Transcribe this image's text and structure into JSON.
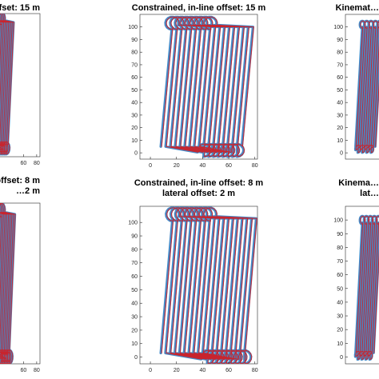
{
  "figure": {
    "colors": {
      "blue_series": "#3b84c4",
      "red_series": "#c8242d",
      "axes": "#262626",
      "background": "#ffffff"
    }
  },
  "chart_data": [
    {
      "type": "line",
      "title": "…e offset: 15 m",
      "subtitle": "",
      "xlabel": "",
      "ylabel": "",
      "xlim": [
        0,
        85
      ],
      "ylim": [
        -5,
        110
      ],
      "xticks": [
        60,
        80
      ],
      "yticks": [],
      "swath_x": [
        2,
        36
      ],
      "swath_y": [
        5,
        103
      ],
      "lines": 14,
      "pattern": "shuffle",
      "loop_radius": [
        5,
        6
      ],
      "legend": "none"
    },
    {
      "type": "line",
      "title": "Constrained, in-line offset: 15 m",
      "subtitle": "",
      "xlabel": "",
      "ylabel": "",
      "xlim": [
        -8,
        82
      ],
      "ylim": [
        -5,
        110
      ],
      "xticks": [
        0,
        20,
        40,
        60,
        80
      ],
      "yticks": [
        0,
        10,
        20,
        30,
        40,
        50,
        60,
        70,
        80,
        90,
        100
      ],
      "swath_x": [
        8,
        70
      ],
      "swath_y": [
        5,
        100
      ],
      "lines": 18,
      "pattern": "shuffle",
      "loop_radius": [
        5,
        6
      ],
      "legend": "none"
    },
    {
      "type": "line",
      "title": "Kinemat…",
      "subtitle": "",
      "xlabel": "",
      "ylabel": "",
      "xlim": [
        -8,
        82
      ],
      "ylim": [
        -5,
        110
      ],
      "xticks": [],
      "yticks": [
        0,
        10,
        20,
        30,
        40,
        50,
        60,
        70,
        80,
        90,
        100
      ],
      "swath_x": [
        5,
        30
      ],
      "swath_y": [
        5,
        100
      ],
      "lines": 10,
      "pattern": "boustrophedon",
      "loop_radius": [
        3,
        3
      ],
      "legend": "none"
    },
    {
      "type": "line",
      "title": "…e offset: 8 m",
      "subtitle": "…2 m",
      "xlabel": "",
      "ylabel": "",
      "xlim": [
        0,
        85
      ],
      "ylim": [
        -5,
        110
      ],
      "xticks": [
        60,
        80
      ],
      "yticks": [],
      "swath_x": [
        2,
        38
      ],
      "swath_y": [
        3,
        102
      ],
      "lines": 15,
      "pattern": "shuffle",
      "loop_radius": [
        5,
        6
      ],
      "legend": "none"
    },
    {
      "type": "line",
      "title": "Constrained, in-line offset: 8 m",
      "subtitle": "lateral offset: 2 m",
      "xlabel": "",
      "ylabel": "",
      "xlim": [
        -8,
        82
      ],
      "ylim": [
        -5,
        112
      ],
      "xticks": [
        0,
        20,
        40,
        60,
        80
      ],
      "yticks": [
        0,
        10,
        20,
        30,
        40,
        50,
        60,
        70,
        80,
        90,
        100
      ],
      "swath_x": [
        8,
        72
      ],
      "swath_y": [
        3,
        103
      ],
      "lines": 19,
      "pattern": "shuffle",
      "loop_radius": [
        5,
        6
      ],
      "legend": "none"
    },
    {
      "type": "line",
      "title": "Kinema…",
      "subtitle": "lat…",
      "xlabel": "",
      "ylabel": "",
      "xlim": [
        -8,
        82
      ],
      "ylim": [
        -5,
        110
      ],
      "xticks": [],
      "yticks": [
        0,
        10,
        20,
        30,
        40,
        50,
        60,
        70,
        80,
        90,
        100
      ],
      "swath_x": [
        5,
        28
      ],
      "swath_y": [
        3,
        98
      ],
      "lines": 10,
      "pattern": "boustrophedon",
      "loop_radius": [
        3,
        3
      ],
      "legend": "none"
    }
  ]
}
